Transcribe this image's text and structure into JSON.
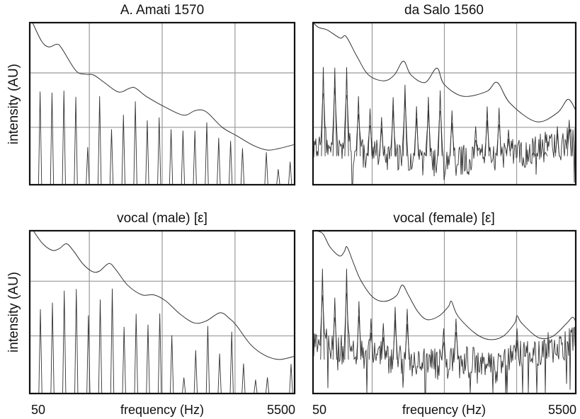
{
  "chart_data": [
    {
      "type": "line",
      "title": "A. Amati 1570",
      "ylabel": "intensity (AU)",
      "xlabel": "",
      "xlim": [
        50,
        5500
      ],
      "ylim": [
        0,
        1
      ],
      "grid": true,
      "noise_floor": 0,
      "harmonics": {
        "freq_hz": [
          263,
          508,
          753,
          998,
          1243,
          1488,
          1733,
          1978,
          2223,
          2468,
          2713,
          2958,
          3203,
          3448,
          3693,
          3938,
          4183,
          4428,
          4918,
          5163,
          5408
        ],
        "intensity": [
          0.575,
          0.568,
          0.58,
          0.542,
          0.232,
          0.546,
          0.342,
          0.431,
          0.514,
          0.397,
          0.415,
          0.342,
          0.334,
          0.334,
          0.384,
          0.289,
          0.27,
          0.225,
          0.2,
          0.096,
          0.142
        ]
      },
      "envelope": [
        [
          108,
          1.0
        ],
        [
          293,
          0.886
        ],
        [
          439,
          0.85
        ],
        [
          610,
          0.867
        ],
        [
          707,
          0.842
        ],
        [
          999,
          0.704
        ],
        [
          1194,
          0.682
        ],
        [
          1364,
          0.677
        ],
        [
          1583,
          0.631
        ],
        [
          1875,
          0.572
        ],
        [
          2094,
          0.594
        ],
        [
          2215,
          0.598
        ],
        [
          2459,
          0.543
        ],
        [
          2848,
          0.477
        ],
        [
          3213,
          0.429
        ],
        [
          3432,
          0.455
        ],
        [
          3578,
          0.462
        ],
        [
          3724,
          0.44
        ],
        [
          4016,
          0.353
        ],
        [
          4308,
          0.302
        ],
        [
          4649,
          0.243
        ],
        [
          4940,
          0.214
        ],
        [
          5184,
          0.224
        ],
        [
          5500,
          0.248
        ]
      ]
    },
    {
      "type": "line",
      "title": "da Salo 1560",
      "ylabel": "",
      "xlabel": "",
      "xlim": [
        50,
        5500
      ],
      "ylim": [
        0,
        1
      ],
      "grid": true,
      "noise_floor": 0.22,
      "harmonics": {
        "freq_hz": [
          263,
          502,
          748,
          993,
          1233,
          1472,
          1712,
          1958,
          2197,
          2443,
          2688,
          2933,
          3424,
          3663,
          3909,
          4105,
          4628,
          4873,
          5119,
          5364
        ],
        "intensity": [
          0.726,
          0.722,
          0.725,
          0.546,
          0.47,
          0.417,
          0.54,
          0.617,
          0.484,
          0.542,
          0.582,
          0.458,
          0.36,
          0.483,
          0.475,
          0.34,
          0.2,
          0.2,
          0.36,
          0.4
        ]
      },
      "envelope": [
        [
          50,
          1.0
        ],
        [
          170,
          0.97
        ],
        [
          344,
          0.955
        ],
        [
          613,
          0.905
        ],
        [
          735,
          0.915
        ],
        [
          955,
          0.795
        ],
        [
          1200,
          0.678
        ],
        [
          1520,
          0.641
        ],
        [
          1740,
          0.678
        ],
        [
          1925,
          0.763
        ],
        [
          2080,
          0.678
        ],
        [
          2375,
          0.631
        ],
        [
          2620,
          0.719
        ],
        [
          2770,
          0.619
        ],
        [
          3160,
          0.546
        ],
        [
          3650,
          0.575
        ],
        [
          3870,
          0.631
        ],
        [
          4140,
          0.502
        ],
        [
          4680,
          0.389
        ],
        [
          5120,
          0.444
        ],
        [
          5340,
          0.527
        ],
        [
          5500,
          0.458
        ]
      ]
    },
    {
      "type": "line",
      "title": "vocal (male) [ε]",
      "ylabel": "intensity (AU)",
      "xlabel": "frequency (Hz)",
      "xtick_labels": [
        "50",
        "5500"
      ],
      "xlim": [
        50,
        5500
      ],
      "ylim": [
        0,
        1
      ],
      "grid": true,
      "noise_floor": 0,
      "harmonics": {
        "freq_hz": [
          269,
          517,
          760,
          1008,
          1257,
          1500,
          1748,
          1991,
          2239,
          2483,
          2726,
          2974,
          3222,
          3465,
          3714,
          3957,
          4206,
          4449,
          4697,
          4940,
          5427
        ],
        "intensity": [
          0.518,
          0.558,
          0.632,
          0.642,
          0.48,
          0.577,
          0.644,
          0.409,
          0.489,
          0.423,
          0.492,
          0.358,
          0.098,
          0.266,
          0.415,
          0.245,
          0.38,
          0.184,
          0.085,
          0.099,
          0.182
        ]
      },
      "envelope": [
        [
          123,
          1.0
        ],
        [
          318,
          0.92
        ],
        [
          513,
          0.88
        ],
        [
          658,
          0.89
        ],
        [
          804,
          0.92
        ],
        [
          950,
          0.876
        ],
        [
          1145,
          0.796
        ],
        [
          1339,
          0.749
        ],
        [
          1485,
          0.752
        ],
        [
          1680,
          0.799
        ],
        [
          1826,
          0.759
        ],
        [
          2069,
          0.664
        ],
        [
          2361,
          0.606
        ],
        [
          2604,
          0.606
        ],
        [
          2848,
          0.569
        ],
        [
          3140,
          0.489
        ],
        [
          3432,
          0.434
        ],
        [
          3675,
          0.445
        ],
        [
          3967,
          0.496
        ],
        [
          4162,
          0.46
        ],
        [
          4308,
          0.416
        ],
        [
          4600,
          0.299
        ],
        [
          4892,
          0.234
        ],
        [
          5184,
          0.209
        ],
        [
          5500,
          0.229
        ]
      ]
    },
    {
      "type": "line",
      "title": "vocal (female) [ε]",
      "ylabel": "",
      "xlabel": "frequency (Hz)",
      "xtick_labels": [
        "50",
        "5500"
      ],
      "xlim": [
        50,
        5500
      ],
      "ylim": [
        0,
        1
      ],
      "grid": true,
      "noise_floor": 0.26,
      "harmonics": {
        "freq_hz": [
          246,
          502,
          747,
          1003,
          1253,
          1508,
          1754,
          2004,
          2760,
          3016,
          4282
        ],
        "intensity": [
          0.766,
          0.589,
          0.766,
          0.567,
          0.461,
          0.432,
          0.532,
          0.52,
          0.4,
          0.46,
          0.4
        ]
      },
      "envelope": [
        [
          109,
          1.0
        ],
        [
          256,
          0.981
        ],
        [
          403,
          0.9
        ],
        [
          600,
          0.845
        ],
        [
          698,
          0.871
        ],
        [
          757,
          0.9
        ],
        [
          894,
          0.797
        ],
        [
          1042,
          0.695
        ],
        [
          1287,
          0.593
        ],
        [
          1533,
          0.566
        ],
        [
          1778,
          0.6
        ],
        [
          1901,
          0.666
        ],
        [
          2024,
          0.607
        ],
        [
          2220,
          0.505
        ],
        [
          2417,
          0.454
        ],
        [
          2662,
          0.476
        ],
        [
          2858,
          0.534
        ],
        [
          2922,
          0.566
        ],
        [
          3055,
          0.476
        ],
        [
          3399,
          0.373
        ],
        [
          3692,
          0.332
        ],
        [
          3988,
          0.351
        ],
        [
          4233,
          0.432
        ],
        [
          4282,
          0.478
        ],
        [
          4380,
          0.432
        ],
        [
          4724,
          0.344
        ],
        [
          5019,
          0.351
        ],
        [
          5313,
          0.432
        ],
        [
          5436,
          0.469
        ],
        [
          5500,
          0.44
        ]
      ]
    }
  ],
  "colors": {
    "frame": "#111111",
    "grid": "#9a9a9a",
    "trace": "#333333"
  }
}
